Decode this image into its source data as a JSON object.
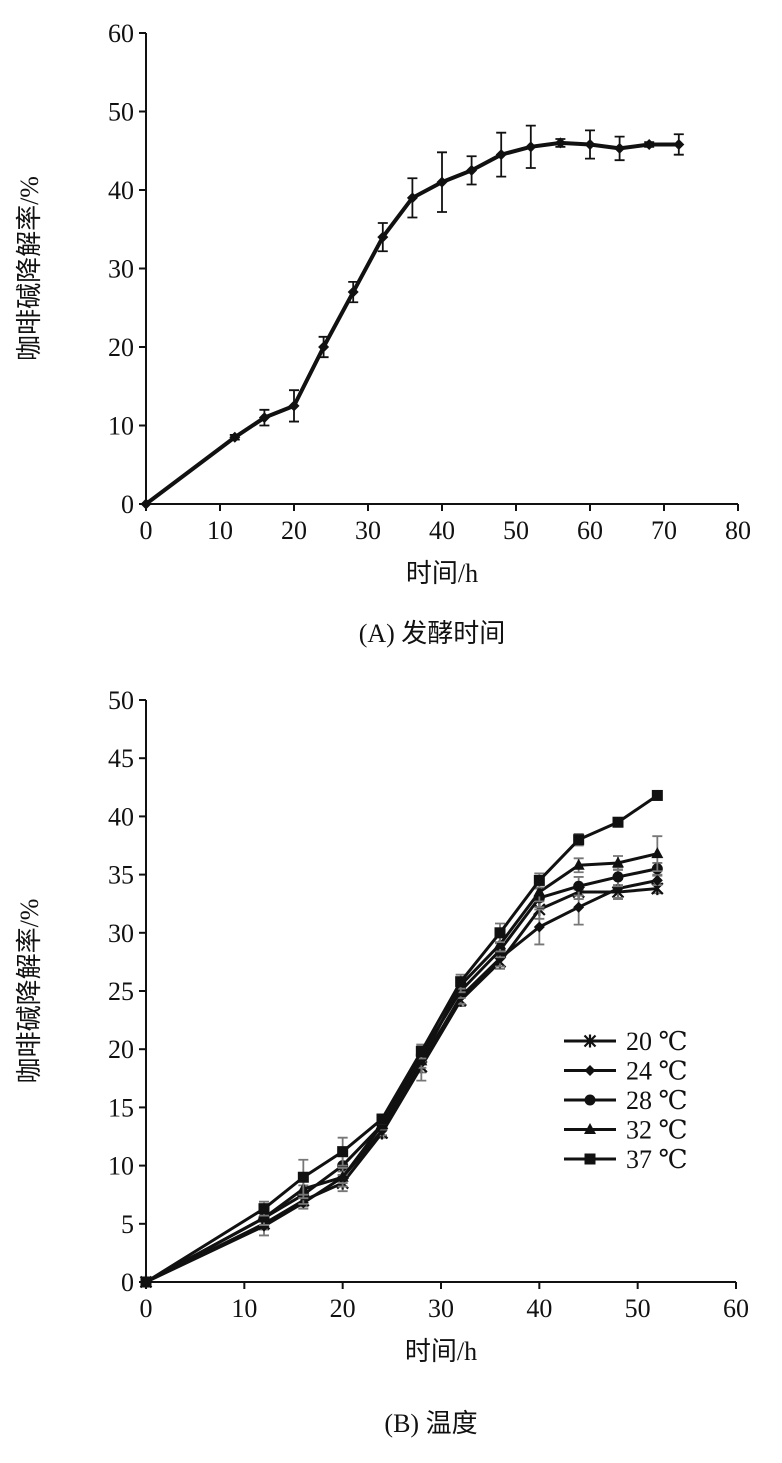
{
  "chart_data": [
    {
      "type": "line",
      "caption": "(A) 发酵时间",
      "xlabel": "时间/h",
      "ylabel": "咖啡碱降解率/%",
      "xlim": [
        0,
        80
      ],
      "ylim": [
        0,
        60
      ],
      "xticks": [
        "0",
        "10",
        "20",
        "30",
        "40",
        "50",
        "60",
        "70",
        "80"
      ],
      "yticks": [
        "0",
        "10",
        "20",
        "30",
        "40",
        "50",
        "60"
      ],
      "grid": false,
      "series": [
        {
          "marker": "diamond",
          "x": [
            0,
            12,
            16,
            20,
            24,
            28,
            32,
            36,
            40,
            44,
            48,
            52,
            56,
            60,
            64,
            68,
            72
          ],
          "y": [
            0,
            8.5,
            11,
            12.5,
            20,
            27,
            34,
            39,
            41,
            42.5,
            44.5,
            45.5,
            46,
            45.8,
            45.3,
            45.8,
            45.8
          ],
          "error": [
            0,
            0.3,
            1.0,
            2.0,
            1.3,
            1.3,
            1.8,
            2.5,
            3.8,
            1.8,
            2.8,
            2.7,
            0.5,
            1.8,
            1.5,
            0.3,
            1.3
          ]
        }
      ]
    },
    {
      "type": "line",
      "caption": "(B) 温度",
      "xlabel": "时间/h",
      "ylabel": "咖啡碱降解率/%",
      "xlim": [
        0,
        60
      ],
      "ylim": [
        0,
        50
      ],
      "xticks": [
        "0",
        "10",
        "20",
        "30",
        "40",
        "50",
        "60"
      ],
      "yticks": [
        "0",
        "5",
        "10",
        "15",
        "20",
        "25",
        "30",
        "35",
        "40",
        "45",
        "50"
      ],
      "grid": false,
      "legend_position": "right",
      "x": [
        0,
        12,
        16,
        20,
        24,
        28,
        32,
        36,
        40,
        44,
        48,
        52
      ],
      "series": [
        {
          "name": "20 ℃",
          "marker": "star",
          "y": [
            0,
            5.0,
            7.0,
            8.5,
            12.8,
            18.5,
            24.2,
            27.5,
            32.0,
            33.5,
            33.5,
            33.8
          ],
          "error": [
            0,
            0.5,
            0.5,
            0.7,
            0.4,
            0.5,
            0.5,
            0.6,
            0.8,
            0.6,
            0.6,
            0.4
          ]
        },
        {
          "name": "24 ℃",
          "marker": "diamond",
          "y": [
            0,
            4.8,
            6.8,
            9.0,
            13.0,
            18.8,
            24.5,
            27.8,
            30.5,
            32.2,
            33.8,
            34.5
          ],
          "error": [
            0,
            0.8,
            0.5,
            0.5,
            0.4,
            1.5,
            0.6,
            0.7,
            1.5,
            1.5,
            0.8,
            0.4
          ]
        },
        {
          "name": "28 ℃",
          "marker": "circle",
          "y": [
            0,
            5.5,
            7.5,
            10.0,
            13.5,
            19.5,
            25.0,
            28.5,
            33.0,
            34.0,
            34.8,
            35.5
          ],
          "error": [
            0,
            0.6,
            0.8,
            0.8,
            0.4,
            0.6,
            0.6,
            0.6,
            0.8,
            0.8,
            0.8,
            0.5
          ]
        },
        {
          "name": "32 ℃",
          "marker": "triangle",
          "y": [
            0,
            5.5,
            8.0,
            9.0,
            13.5,
            19.0,
            25.5,
            29.0,
            33.5,
            35.8,
            36.0,
            36.8
          ],
          "error": [
            0,
            0.6,
            0.8,
            0.8,
            0.4,
            0.6,
            0.6,
            0.6,
            0.8,
            0.6,
            0.6,
            1.5
          ]
        },
        {
          "name": "37 ℃",
          "marker": "square",
          "y": [
            0,
            6.3,
            9.0,
            11.2,
            14.0,
            19.8,
            25.8,
            30.0,
            34.5,
            38.0,
            39.5,
            41.8
          ],
          "error": [
            0,
            0.6,
            1.5,
            1.2,
            0.4,
            0.6,
            0.6,
            0.8,
            0.6,
            0.5,
            0.3,
            0.3
          ]
        }
      ]
    }
  ]
}
